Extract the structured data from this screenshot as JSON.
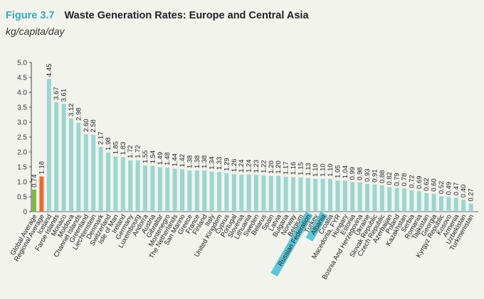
{
  "figure": {
    "number": "Figure 3.7",
    "title": "Waste Generation Rates: Europe and Central Asia",
    "unit_label": "kg/capita/day"
  },
  "chart_data": {
    "type": "bar",
    "title": "Waste Generation Rates: Europe and Central Asia",
    "ylabel": "kg/capita/day",
    "xlabel": "",
    "ylim": [
      0,
      5.0
    ],
    "yticks": [
      "0",
      "0.5",
      "1.0",
      "1.5",
      "2.0",
      "2.5",
      "3.0",
      "3.5",
      "4.0",
      "4.5",
      "5.0"
    ],
    "grid": false,
    "colors": {
      "bar": "#9bd6cf",
      "global_average": "#7cba43",
      "regional_average": "#e86a2c",
      "highlight": "#5ec6d6"
    },
    "categories": [
      "Global Average",
      "Regional Average",
      "Iceland",
      "Faroe Islands",
      "Monaco",
      "Moldova",
      "Channel Islands",
      "Greenland",
      "Liechtenstein",
      "Denmark",
      "Switzerland",
      "Isle of Man",
      "Ireland",
      "Germany",
      "Luxembourg",
      "Andorra",
      "Austria",
      "Gibraltar",
      "Montenegro",
      "The Netherlands",
      "San Marino",
      "Greece",
      "France",
      "Finland",
      "Italy",
      "United Kingdom",
      "Cyprus",
      "Portugal",
      "Slovenia",
      "Lithuania",
      "Sweden",
      "Belarus",
      "Spain",
      "Latvia",
      "Bulgaria",
      "Norway",
      "Belgium",
      "Russian Federation",
      "Turkey",
      "Albania",
      "Croatia",
      "Macedonia, FYR",
      "Hungary",
      "Estonia",
      "Bosnia And Herzegovina",
      "Ukraine",
      "Slovak Republic",
      "Czech Republic",
      "Azerbaijan",
      "Poland",
      "Kazakhstan",
      "Serbia",
      "Romania",
      "Tajikistan",
      "Georgia",
      "Kyrgyz Republic",
      "Kosovo",
      "Armenia",
      "Uzbekistan",
      "Turkmenistan"
    ],
    "values": [
      0.74,
      1.18,
      4.45,
      3.67,
      3.61,
      3.12,
      2.98,
      2.6,
      2.58,
      2.17,
      1.98,
      1.85,
      1.83,
      1.72,
      1.72,
      1.55,
      1.54,
      1.49,
      1.48,
      1.44,
      1.42,
      1.38,
      1.38,
      1.38,
      1.34,
      1.33,
      1.29,
      1.26,
      1.24,
      1.24,
      1.23,
      1.22,
      1.2,
      1.2,
      1.17,
      1.16,
      1.15,
      1.13,
      1.1,
      1.1,
      1.1,
      1.05,
      1.04,
      0.99,
      0.98,
      0.93,
      0.91,
      0.88,
      0.82,
      0.79,
      0.78,
      0.72,
      0.69,
      0.62,
      0.6,
      0.52,
      0.49,
      0.47,
      0.4,
      0.27
    ],
    "value_labels": [
      "0.74",
      "1.18",
      "4.45",
      "3.67",
      "3.61",
      "3.12",
      "2.98",
      "2.60",
      "2.58",
      "2.17",
      "1.98",
      "1.85",
      "1.83",
      "1.72",
      "1.72",
      "1.55",
      "1.54",
      "1.49",
      "1.48",
      "1.44",
      "1.42",
      "1.38",
      "1.38",
      "1.38",
      "1.34",
      "1.33",
      "1.29",
      "1.26",
      "1.24",
      "1.24",
      "1.23",
      "1.22",
      "1.20",
      "1.20",
      "1.17",
      "1.16",
      "1.15",
      "1.13",
      "1.10",
      "1.10",
      "1.10",
      "1.05",
      "1.04",
      "0.99",
      "0.98",
      "0.93",
      "0.91",
      "0.88",
      "0.82",
      "0.79",
      "0.78",
      "0.72",
      "0.69",
      "0.62",
      "0.60",
      "0.52",
      "0.49",
      "0.47",
      "0.40",
      "0.27"
    ],
    "highlighted": [
      "Russian Federation",
      "Albania"
    ]
  }
}
